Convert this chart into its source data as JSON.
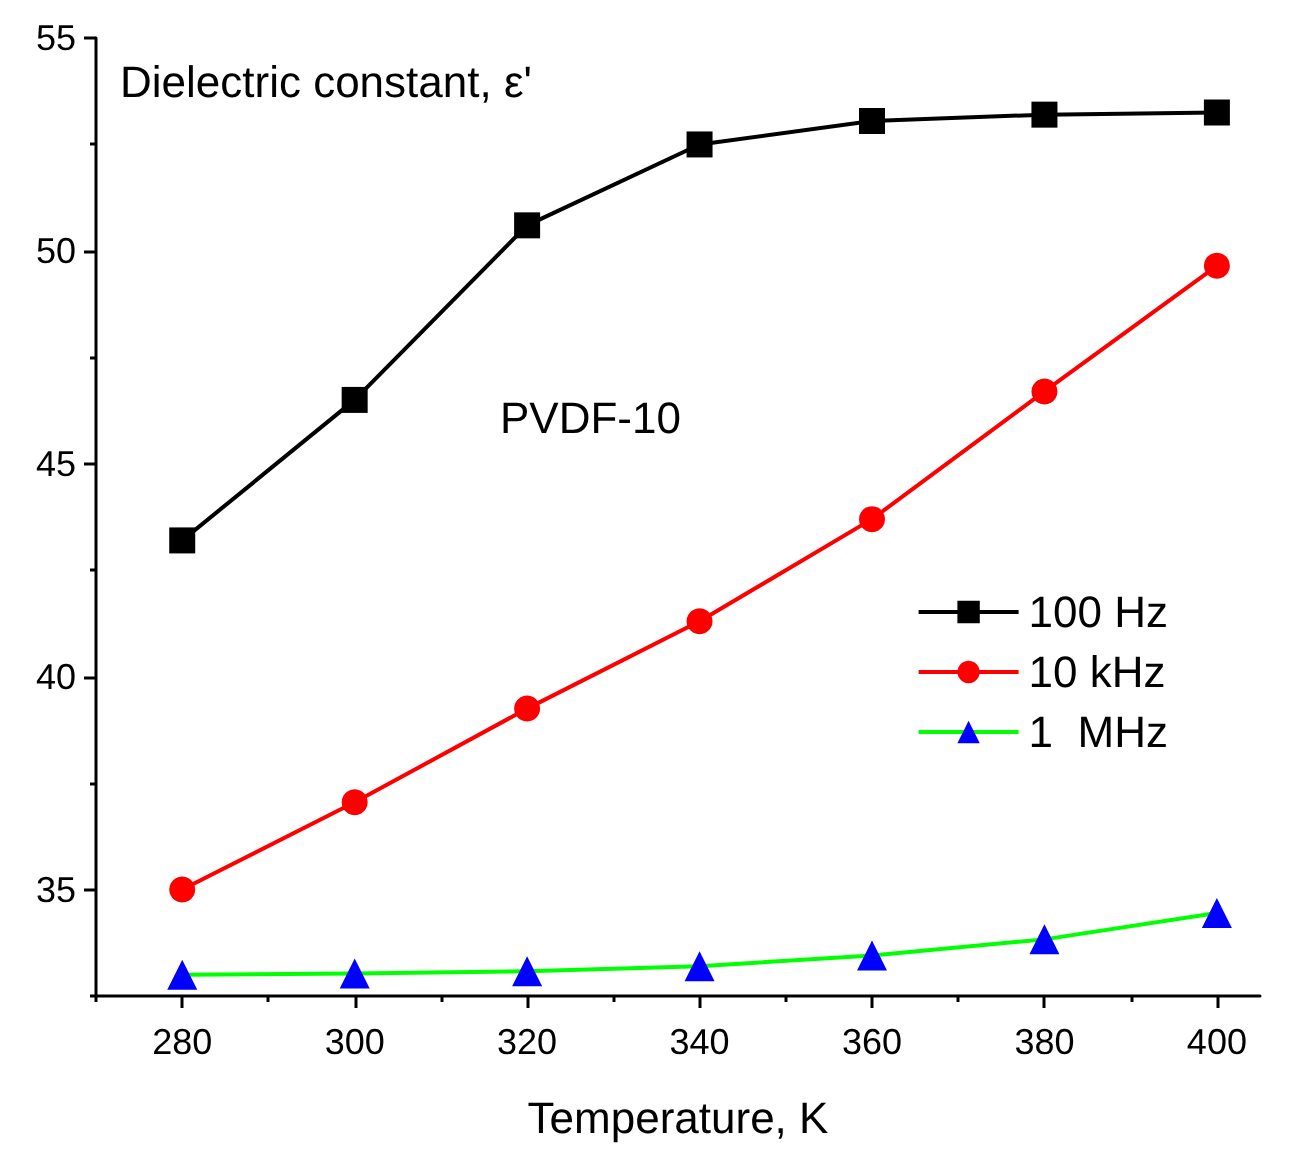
{
  "chart_data": {
    "type": "line",
    "ylabel": "Dielectric constant, ε'",
    "xlabel": "Temperature, K",
    "annotations": [
      "PVDF-10"
    ],
    "x": [
      280,
      300,
      320,
      340,
      360,
      380,
      400
    ],
    "series": [
      {
        "name": "100 Hz",
        "color": "#000000",
        "marker": "square",
        "values": [
          43.2,
          46.5,
          50.6,
          52.5,
          53.05,
          53.2,
          53.25
        ]
      },
      {
        "name": "10 kHz",
        "color": "#ff0000",
        "marker": "circle",
        "values": [
          35.0,
          37.05,
          39.25,
          41.3,
          43.7,
          46.7,
          49.65
        ]
      },
      {
        "name": "1  MHz",
        "color": "#00ff00",
        "colors": [
          "#0000ff",
          "#0000ff",
          "#0000ff",
          "#0000ff",
          "#0000ff",
          "#0000ff",
          "#0000ff"
        ],
        "marker": "triangle",
        "values": [
          33.0,
          33.03,
          33.08,
          33.2,
          33.45,
          33.83,
          34.45
        ]
      }
    ],
    "xlim": [
      270,
      405
    ],
    "xticks": [
      280,
      300,
      320,
      340,
      360,
      380,
      400
    ],
    "ylim": [
      32.5,
      55
    ],
    "yticks": [
      35,
      40,
      45,
      50,
      55
    ],
    "grid": false,
    "legend": "right",
    "line_style": "solid"
  }
}
